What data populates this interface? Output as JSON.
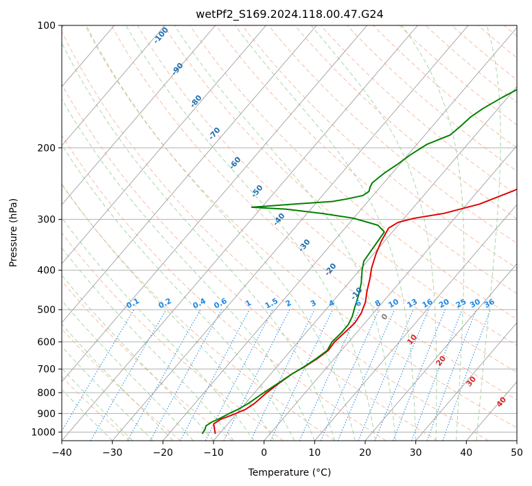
{
  "chart_data": {
    "type": "line",
    "title": "wetPf2_S169.2024.118.00.47.G24",
    "xlabel": "Temperature (°C)",
    "ylabel": "Pressure (hPa)",
    "xlim": [
      -40,
      50
    ],
    "ylim": [
      1050,
      100
    ],
    "y_scale": "log",
    "x_ticks": [
      -40,
      -30,
      -20,
      -10,
      0,
      10,
      20,
      30,
      40,
      50
    ],
    "y_ticks": [
      100,
      200,
      300,
      400,
      500,
      600,
      700,
      800,
      900,
      1000
    ],
    "grid": true,
    "series": [
      {
        "color": "#e00000",
        "points": [
          [
            -10.8,
            1010
          ],
          [
            -11.7,
            985
          ],
          [
            -12.8,
            955
          ],
          [
            -12.2,
            930
          ],
          [
            -10.5,
            905
          ],
          [
            -9.0,
            880
          ],
          [
            -8.2,
            850
          ],
          [
            -7.6,
            800
          ],
          [
            -6.8,
            760
          ],
          [
            -5.8,
            720
          ],
          [
            -4.5,
            690
          ],
          [
            -3.4,
            660
          ],
          [
            -2.6,
            630
          ],
          [
            -2.8,
            600
          ],
          [
            -2.4,
            570
          ],
          [
            -2.0,
            540
          ],
          [
            -2.4,
            510
          ],
          [
            -3.4,
            480
          ],
          [
            -5.0,
            450
          ],
          [
            -6.5,
            420
          ],
          [
            -8.0,
            395
          ],
          [
            -9.5,
            365
          ],
          [
            -10.6,
            340
          ],
          [
            -11.4,
            315
          ],
          [
            -10.5,
            305
          ],
          [
            -8.0,
            298
          ],
          [
            -3.0,
            290
          ],
          [
            2.5,
            275
          ],
          [
            7.0,
            255
          ],
          [
            10.8,
            235
          ],
          [
            13.5,
            220
          ],
          [
            15.5,
            205
          ],
          [
            17.0,
            190
          ],
          [
            18.6,
            175
          ],
          [
            20.5,
            160
          ],
          [
            22.0,
            145
          ],
          [
            23.8,
            132
          ],
          [
            26.5,
            120
          ],
          [
            29.0,
            111
          ],
          [
            31.5,
            105
          ],
          [
            33.0,
            101
          ]
        ]
      },
      {
        "color": "#008000",
        "points": [
          [
            -13.4,
            1010
          ],
          [
            -13.6,
            985
          ],
          [
            -14.0,
            965
          ],
          [
            -13.5,
            945
          ],
          [
            -12.5,
            925
          ],
          [
            -11.5,
            900
          ],
          [
            -10.5,
            880
          ],
          [
            -9.4,
            850
          ],
          [
            -8.2,
            800
          ],
          [
            -7.0,
            760
          ],
          [
            -5.8,
            720
          ],
          [
            -4.6,
            690
          ],
          [
            -3.6,
            660
          ],
          [
            -2.8,
            630
          ],
          [
            -3.3,
            600
          ],
          [
            -3.0,
            570
          ],
          [
            -3.0,
            545
          ],
          [
            -3.6,
            520
          ],
          [
            -4.8,
            490
          ],
          [
            -6.0,
            460
          ],
          [
            -7.5,
            430
          ],
          [
            -9.5,
            400
          ],
          [
            -10.7,
            380
          ],
          [
            -11.0,
            360
          ],
          [
            -11.3,
            340
          ],
          [
            -11.6,
            322
          ],
          [
            -14.0,
            310
          ],
          [
            -20.0,
            298
          ],
          [
            -27.0,
            290
          ],
          [
            -35.0,
            283
          ],
          [
            -42.0,
            280
          ],
          [
            -34.0,
            275
          ],
          [
            -27.0,
            271
          ],
          [
            -24.5,
            267
          ],
          [
            -22.0,
            262
          ],
          [
            -21.5,
            256
          ],
          [
            -22.0,
            250
          ],
          [
            -22.3,
            244
          ],
          [
            -22.0,
            238
          ],
          [
            -21.5,
            230
          ],
          [
            -20.5,
            220
          ],
          [
            -19.5,
            208
          ],
          [
            -18.0,
            196
          ],
          [
            -15.0,
            186
          ],
          [
            -14.5,
            178
          ],
          [
            -14.0,
            168
          ],
          [
            -13.0,
            160
          ],
          [
            -11.0,
            150
          ],
          [
            -8.5,
            140
          ],
          [
            -6.5,
            130
          ],
          [
            -4.5,
            121
          ],
          [
            -3.0,
            114
          ],
          [
            -0.5,
            107
          ],
          [
            1.5,
            101
          ]
        ]
      }
    ],
    "dry_adiabat_labels": [
      "-100",
      "-90",
      "-80",
      "-70",
      "-60",
      "-50",
      "-40",
      "-30",
      "-20",
      "-10",
      "0",
      "10",
      "20",
      "30",
      "40"
    ],
    "mixing_ratio_labels": [
      "0.1",
      "0.2",
      "0.4",
      "0.6",
      "1",
      "1.5",
      "2",
      "3",
      "4",
      "6",
      "8",
      "10",
      "13",
      "16",
      "20",
      "25",
      "30",
      "36"
    ],
    "mixing_ratio_values": [
      0.1,
      0.2,
      0.4,
      0.6,
      1,
      1.5,
      2,
      3,
      4,
      6,
      8,
      10,
      13,
      16,
      20,
      25,
      30,
      36
    ],
    "colors": {
      "temperature": "#e00000",
      "dewpoint": "#008000",
      "isotherm": "#9e9e9e",
      "isobar": "#b0b0b0",
      "dry_adiabat": "#f4a582",
      "moist_adiabat": "#8fcc8f",
      "mixing_ratio": "#1e88e5",
      "isotherm_label": "#1f6fb0",
      "warm_label": "#d62728",
      "zero_label": "#7f7f7f"
    }
  }
}
